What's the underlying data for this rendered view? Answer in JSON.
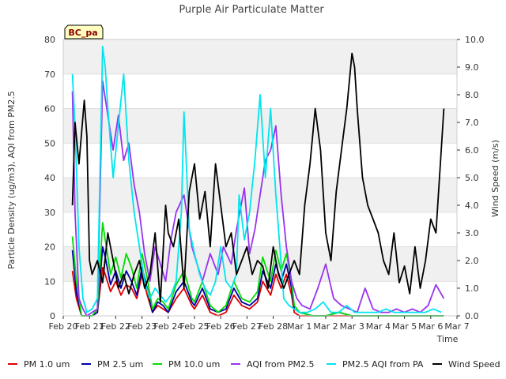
{
  "chart_data": {
    "type": "line",
    "title": "Purple Air Particulate Matter",
    "site_label": "BC_pa",
    "xlabel": "Time",
    "ylabel_left": "Particle Density (ug/m3), AQI from PM2.5",
    "ylabel_right": "Wind Speed (m/s)",
    "ylim_left": [
      0,
      80
    ],
    "ylim_right": [
      0,
      10
    ],
    "yticks_left": [
      "0",
      "10",
      "20",
      "30",
      "40",
      "50",
      "60",
      "70",
      "80"
    ],
    "yticks_right": [
      "0.0",
      "1.0",
      "2.0",
      "3.0",
      "4.0",
      "5.0",
      "6.0",
      "7.0",
      "8.0",
      "9.0",
      "10.0"
    ],
    "xticks": [
      "Feb 20",
      "Feb 21",
      "Feb 22",
      "Feb 23",
      "Feb 24",
      "Feb 25",
      "Feb 26",
      "Feb 27",
      "Feb 28",
      "Mar 1",
      "Mar 2",
      "Mar 3",
      "Mar 4",
      "Mar 5",
      "Mar 6",
      "Mar 7"
    ],
    "x_day_range": [
      0,
      15
    ],
    "series": [
      {
        "name": "PM 1.0 um",
        "color": "#dd0000",
        "axis": "left",
        "x": [
          0.35,
          0.5,
          0.7,
          0.9,
          1.1,
          1.3,
          1.5,
          1.6,
          1.8,
          2.0,
          2.2,
          2.4,
          2.6,
          2.8,
          3.0,
          3.2,
          3.4,
          3.6,
          3.8,
          4.0,
          4.3,
          4.6,
          4.9,
          5.0,
          5.3,
          5.6,
          5.9,
          6.2,
          6.5,
          6.8,
          7.1,
          7.4,
          7.6,
          7.9,
          8.1,
          8.3,
          8.5,
          8.7,
          8.8,
          9.0,
          9.5,
          10.0,
          10.5,
          11.0,
          11.5,
          12.0,
          12.5,
          13.0,
          13.5,
          14.0,
          14.3,
          14.5
        ],
        "values": [
          13,
          5,
          0,
          0,
          0,
          1,
          14,
          12,
          7,
          10,
          6,
          9,
          8,
          5,
          12,
          6,
          1,
          3,
          2,
          1,
          5,
          8,
          3,
          2,
          6,
          1,
          0,
          1,
          6,
          3,
          2,
          4,
          10,
          6,
          12,
          8,
          12,
          6,
          1,
          0,
          0,
          0,
          0,
          0,
          0,
          0,
          0,
          0,
          0,
          0,
          0,
          0
        ]
      },
      {
        "name": "PM 2.5 um",
        "color": "#0000aa",
        "axis": "left",
        "x": [
          0.35,
          0.5,
          0.7,
          0.9,
          1.1,
          1.3,
          1.5,
          1.6,
          1.8,
          2.0,
          2.2,
          2.4,
          2.6,
          2.8,
          3.0,
          3.2,
          3.4,
          3.6,
          3.8,
          4.0,
          4.3,
          4.6,
          4.9,
          5.0,
          5.3,
          5.6,
          5.9,
          6.2,
          6.5,
          6.8,
          7.1,
          7.4,
          7.6,
          7.9,
          8.1,
          8.3,
          8.5,
          8.7,
          8.8,
          9.0,
          9.5,
          10.0,
          10.5,
          11.0,
          11.5,
          12.0,
          12.5,
          13.0,
          13.5,
          14.0,
          14.3,
          14.5
        ],
        "values": [
          19,
          7,
          0,
          0,
          0,
          1,
          20,
          17,
          9,
          13,
          8,
          13,
          10,
          6,
          14,
          8,
          1,
          4,
          3,
          1,
          7,
          10,
          4,
          3,
          8,
          2,
          1,
          2,
          8,
          4,
          3,
          5,
          13,
          8,
          15,
          10,
          15,
          8,
          2,
          1,
          0,
          0,
          1,
          0,
          0,
          0,
          0,
          0,
          0,
          0,
          0,
          0
        ]
      },
      {
        "name": "PM 10.0 um",
        "color": "#00dd00",
        "axis": "left",
        "x": [
          0.35,
          0.5,
          0.7,
          0.9,
          1.1,
          1.3,
          1.5,
          1.6,
          1.8,
          2.0,
          2.2,
          2.4,
          2.6,
          2.8,
          3.0,
          3.2,
          3.4,
          3.6,
          3.8,
          4.0,
          4.3,
          4.6,
          4.9,
          5.0,
          5.3,
          5.6,
          5.9,
          6.2,
          6.5,
          6.8,
          7.1,
          7.4,
          7.6,
          7.9,
          8.1,
          8.3,
          8.5,
          8.7,
          8.8,
          9.0,
          9.5,
          10.0,
          10.5,
          11.0,
          11.5,
          12.0,
          12.5,
          13.0,
          13.5,
          14.0,
          14.3,
          14.5
        ],
        "values": [
          23,
          10,
          0,
          0,
          0,
          2,
          27,
          22,
          12,
          17,
          11,
          18,
          14,
          8,
          18,
          11,
          2,
          5,
          4,
          2,
          9,
          13,
          5,
          4,
          10,
          3,
          1,
          3,
          10,
          5,
          4,
          7,
          17,
          10,
          19,
          13,
          18,
          10,
          3,
          1,
          0,
          0,
          1,
          0,
          0,
          0,
          0,
          0,
          0,
          0,
          0,
          0
        ]
      },
      {
        "name": "AQI from PM2.5",
        "color": "#9933ee",
        "axis": "left",
        "x": [
          0.35,
          0.45,
          0.6,
          0.75,
          0.9,
          1.1,
          1.3,
          1.5,
          1.7,
          1.9,
          2.1,
          2.3,
          2.5,
          2.7,
          2.9,
          3.1,
          3.3,
          3.5,
          3.7,
          3.9,
          4.1,
          4.3,
          4.6,
          4.9,
          5.1,
          5.3,
          5.6,
          5.9,
          6.1,
          6.4,
          6.6,
          6.9,
          7.1,
          7.3,
          7.5,
          7.7,
          7.9,
          8.1,
          8.3,
          8.5,
          8.7,
          8.9,
          9.1,
          9.4,
          9.7,
          10.0,
          10.3,
          10.6,
          10.9,
          11.2,
          11.5,
          11.8,
          12.1,
          12.4,
          12.7,
          13.0,
          13.3,
          13.6,
          13.9,
          14.2,
          14.5
        ],
        "values": [
          65,
          30,
          5,
          2,
          0,
          1,
          2,
          68,
          58,
          48,
          58,
          45,
          50,
          38,
          30,
          18,
          10,
          20,
          15,
          10,
          22,
          30,
          35,
          20,
          15,
          10,
          18,
          12,
          20,
          15,
          25,
          37,
          18,
          25,
          35,
          45,
          48,
          55,
          35,
          20,
          10,
          5,
          3,
          2,
          8,
          15,
          5,
          3,
          2,
          1,
          8,
          2,
          1,
          1,
          2,
          1,
          2,
          1,
          3,
          9,
          5
        ]
      },
      {
        "name": "PM2.5 AQI from PA",
        "color": "#00e5ee",
        "axis": "left",
        "x": [
          0.35,
          0.45,
          0.6,
          0.75,
          0.9,
          1.1,
          1.3,
          1.5,
          1.6,
          1.7,
          1.9,
          2.1,
          2.3,
          2.5,
          2.7,
          2.9,
          3.1,
          3.3,
          3.5,
          3.7,
          3.9,
          4.1,
          4.3,
          4.5,
          4.6,
          4.8,
          5.0,
          5.2,
          5.4,
          5.6,
          5.8,
          6.0,
          6.2,
          6.4,
          6.6,
          6.7,
          6.9,
          7.1,
          7.3,
          7.5,
          7.7,
          7.9,
          8.1,
          8.3,
          8.4,
          8.6,
          8.8,
          9.0,
          9.3,
          9.6,
          9.9,
          10.2,
          10.5,
          10.8,
          11.1,
          11.4,
          11.7,
          12.0,
          12.3,
          12.6,
          12.9,
          13.2,
          13.5,
          13.8,
          14.1,
          14.4
        ],
        "values": [
          70,
          55,
          20,
          5,
          1,
          2,
          5,
          78,
          72,
          60,
          40,
          55,
          70,
          45,
          30,
          20,
          10,
          5,
          8,
          6,
          4,
          6,
          10,
          30,
          59,
          25,
          18,
          12,
          8,
          6,
          10,
          20,
          10,
          8,
          12,
          35,
          22,
          30,
          45,
          64,
          40,
          60,
          35,
          15,
          5,
          3,
          2,
          1,
          1,
          2,
          4,
          1,
          1,
          3,
          1,
          1,
          1,
          1,
          2,
          1,
          1,
          1,
          1,
          1,
          2,
          1
        ]
      },
      {
        "name": "Wind Speed",
        "color": "#000000",
        "axis": "right",
        "x": [
          0.35,
          0.45,
          0.6,
          0.8,
          0.9,
          1.0,
          1.1,
          1.3,
          1.5,
          1.7,
          1.9,
          2.1,
          2.3,
          2.5,
          2.7,
          2.9,
          3.1,
          3.3,
          3.5,
          3.7,
          3.9,
          4.0,
          4.2,
          4.4,
          4.6,
          4.8,
          5.0,
          5.2,
          5.4,
          5.6,
          5.8,
          6.0,
          6.2,
          6.4,
          6.6,
          6.8,
          7.0,
          7.2,
          7.4,
          7.6,
          7.8,
          8.0,
          8.2,
          8.4,
          8.6,
          8.8,
          9.0,
          9.2,
          9.4,
          9.6,
          9.8,
          10.0,
          10.2,
          10.4,
          10.6,
          10.8,
          11.0,
          11.1,
          11.2,
          11.4,
          11.6,
          11.8,
          12.0,
          12.2,
          12.4,
          12.6,
          12.8,
          13.0,
          13.2,
          13.4,
          13.6,
          13.8,
          14.0,
          14.2,
          14.4,
          14.5
        ],
        "values": [
          4.0,
          7.0,
          5.5,
          7.8,
          6.5,
          2.0,
          1.5,
          2.0,
          1.2,
          3.0,
          2.0,
          1.0,
          1.5,
          0.8,
          1.5,
          2.0,
          1.0,
          1.5,
          3.0,
          0.5,
          4.0,
          3.0,
          2.5,
          3.5,
          1.0,
          4.5,
          5.5,
          3.5,
          4.5,
          2.5,
          5.5,
          4.0,
          2.5,
          3.0,
          1.5,
          2.0,
          2.5,
          1.5,
          2.0,
          1.8,
          1.0,
          2.5,
          1.5,
          1.0,
          1.5,
          2.0,
          1.5,
          4.0,
          5.5,
          7.5,
          6.0,
          3.0,
          2.0,
          4.5,
          6.0,
          7.5,
          9.5,
          9.0,
          7.5,
          5.0,
          4.0,
          3.5,
          3.0,
          2.0,
          1.5,
          3.0,
          1.2,
          1.8,
          0.8,
          2.5,
          1.0,
          2.0,
          3.5,
          3.0,
          6.0,
          7.5
        ]
      }
    ]
  }
}
